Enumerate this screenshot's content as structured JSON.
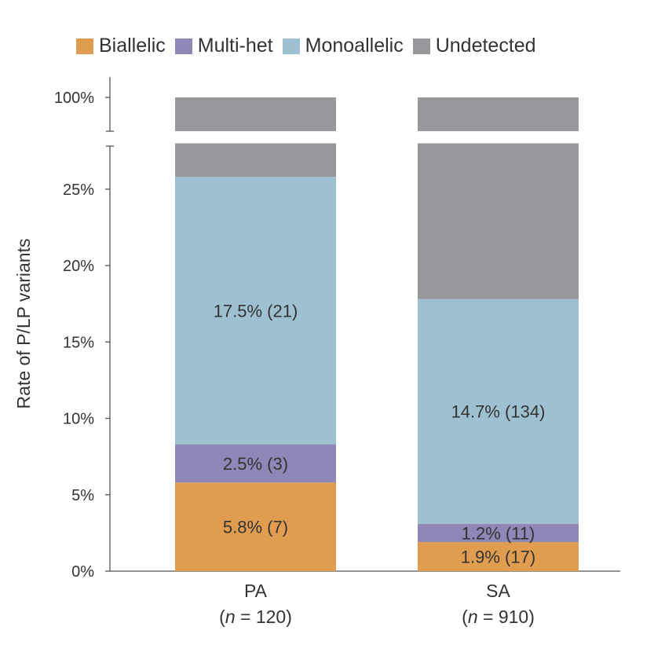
{
  "chart_data": {
    "type": "bar",
    "stacked": true,
    "ylabel": "Rate of P/LP variants",
    "y_ticks": [
      "0%",
      "5%",
      "10%",
      "15%",
      "20%",
      "25%"
    ],
    "y_top_tick": "100%",
    "ylim": [
      0,
      28
    ],
    "y_break": {
      "from": 28,
      "to": 100
    },
    "legend_position": "top",
    "categories": [
      {
        "label": "PA",
        "n_label": "n",
        "n_value": " = 120)"
      },
      {
        "label": "SA",
        "n_label": "n",
        "n_value": " = 910)"
      }
    ],
    "series": [
      {
        "name": "Biallelic",
        "color": "#e19d4f",
        "values": [
          5.8,
          1.9
        ],
        "labels": [
          "5.8% (7)",
          "1.9% (17)"
        ]
      },
      {
        "name": "Multi-het",
        "color": "#9087b9",
        "values": [
          2.5,
          1.2
        ],
        "labels": [
          "2.5% (3)",
          "1.2% (11)"
        ]
      },
      {
        "name": "Monoallelic",
        "color": "#9ec1d1",
        "values": [
          17.5,
          14.7
        ],
        "labels": [
          "17.5% (21)",
          "14.7% (134)"
        ]
      },
      {
        "name": "Undetected",
        "color": "#97989b",
        "values": [
          74.2,
          82.2
        ],
        "labels": [
          "",
          ""
        ]
      }
    ]
  }
}
